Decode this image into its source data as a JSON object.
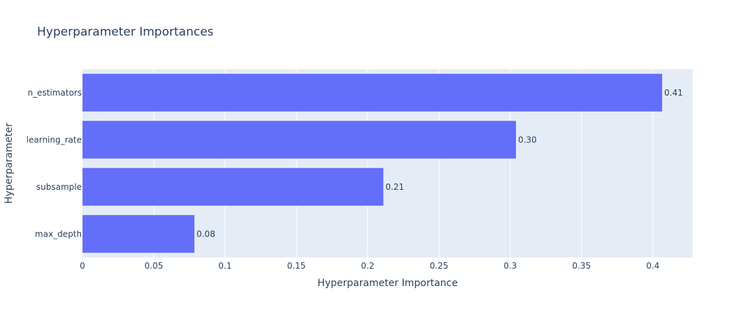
{
  "chart_data": {
    "type": "bar",
    "orientation": "horizontal",
    "title": "Hyperparameter Importances",
    "xlabel": "Hyperparameter Importance",
    "ylabel": "Hyperparameter",
    "categories": [
      "max_depth",
      "subsample",
      "learning_rate",
      "n_estimators"
    ],
    "values": [
      0.0785,
      0.211,
      0.304,
      0.4065
    ],
    "value_labels": [
      "0.08",
      "0.21",
      "0.30",
      "0.41"
    ],
    "xlim": [
      0,
      0.428
    ],
    "xticks": [
      0,
      0.05,
      0.1,
      0.15,
      0.2,
      0.25,
      0.3,
      0.35,
      0.4
    ],
    "xtick_labels": [
      "0",
      "0.05",
      "0.1",
      "0.15",
      "0.2",
      "0.25",
      "0.3",
      "0.35",
      "0.4"
    ],
    "grid": true,
    "legend": "none",
    "colors": {
      "bar": "#636efa",
      "plot_background": "#e5ecf6",
      "grid": "#ffffff",
      "text": "#2a3f5f"
    }
  }
}
